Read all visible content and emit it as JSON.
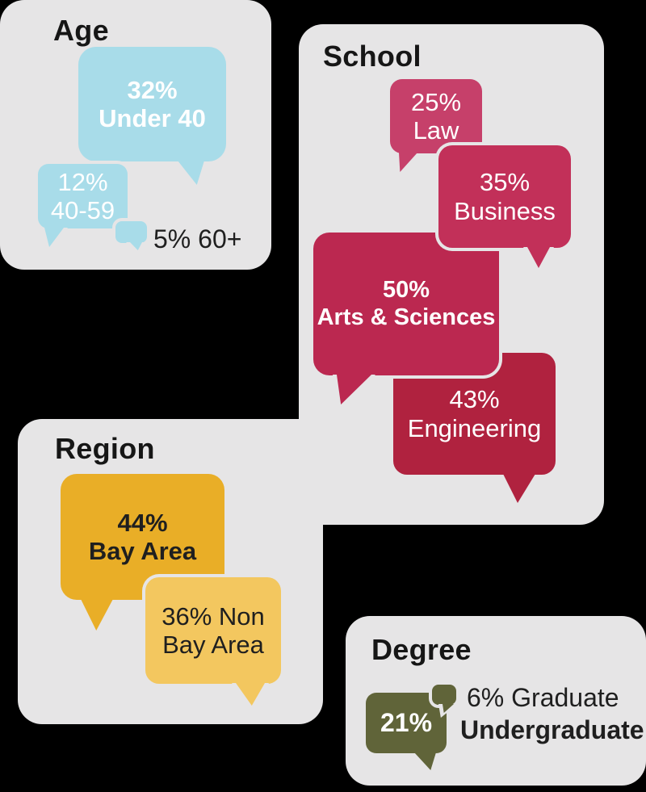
{
  "background_color": "#000000",
  "panel_color": "#e6e5e6",
  "text_dark": "#1f1f1f",
  "text_light": "#ffffff",
  "chart_data": [
    {
      "type": "bubble",
      "title": "Age",
      "categories": [
        "Under 40",
        "40-59",
        "60+"
      ],
      "values": [
        32,
        12,
        5
      ],
      "unit": "%",
      "colors": [
        "#a8dce9",
        "#a8dce9",
        "#a8dce9"
      ]
    },
    {
      "type": "bubble",
      "title": "School",
      "categories": [
        "Law",
        "Business",
        "Arts & Sciences",
        "Engineering"
      ],
      "values": [
        25,
        35,
        50,
        43
      ],
      "unit": "%",
      "colors": [
        "#c6406a",
        "#c23059",
        "#bb2850",
        "#b0223f"
      ]
    },
    {
      "type": "bubble",
      "title": "Region",
      "categories": [
        "Bay Area",
        "Non Bay Area"
      ],
      "values": [
        44,
        36
      ],
      "unit": "%",
      "colors": [
        "#e9ae27",
        "#f3c75f"
      ]
    },
    {
      "type": "bubble",
      "title": "Degree",
      "categories": [
        "Undergraduate",
        "Graduate"
      ],
      "values": [
        21,
        6
      ],
      "unit": "%",
      "colors": [
        "#606439",
        "#606439"
      ]
    }
  ],
  "panels": {
    "age": {
      "title": "Age",
      "bubble_color": "#a8dce9",
      "under40": {
        "value": "32%",
        "label": "Under 40"
      },
      "mid": {
        "value": "12%",
        "label": "40-59"
      },
      "senior_label": "5% 60+"
    },
    "school": {
      "title": "School",
      "law": {
        "value": "25%",
        "label": "Law",
        "color": "#c6406a"
      },
      "business": {
        "value": "35%",
        "label": "Business",
        "color": "#c23059"
      },
      "arts": {
        "value": "50%",
        "label": "Arts & Sciences",
        "color": "#bb2850"
      },
      "engineering": {
        "value": "43%",
        "label": "Engineering",
        "color": "#b0223f"
      }
    },
    "region": {
      "title": "Region",
      "bay": {
        "value": "44%",
        "label": "Bay Area",
        "color": "#e9ae27"
      },
      "nonbay": {
        "label": "36% Non Bay Area",
        "color": "#f3c75f"
      }
    },
    "degree": {
      "title": "Degree",
      "bubble_color": "#606439",
      "undergrad": {
        "value": "21%"
      },
      "grad_label": "6% Graduate",
      "undergrad_label": "Undergraduate"
    }
  }
}
